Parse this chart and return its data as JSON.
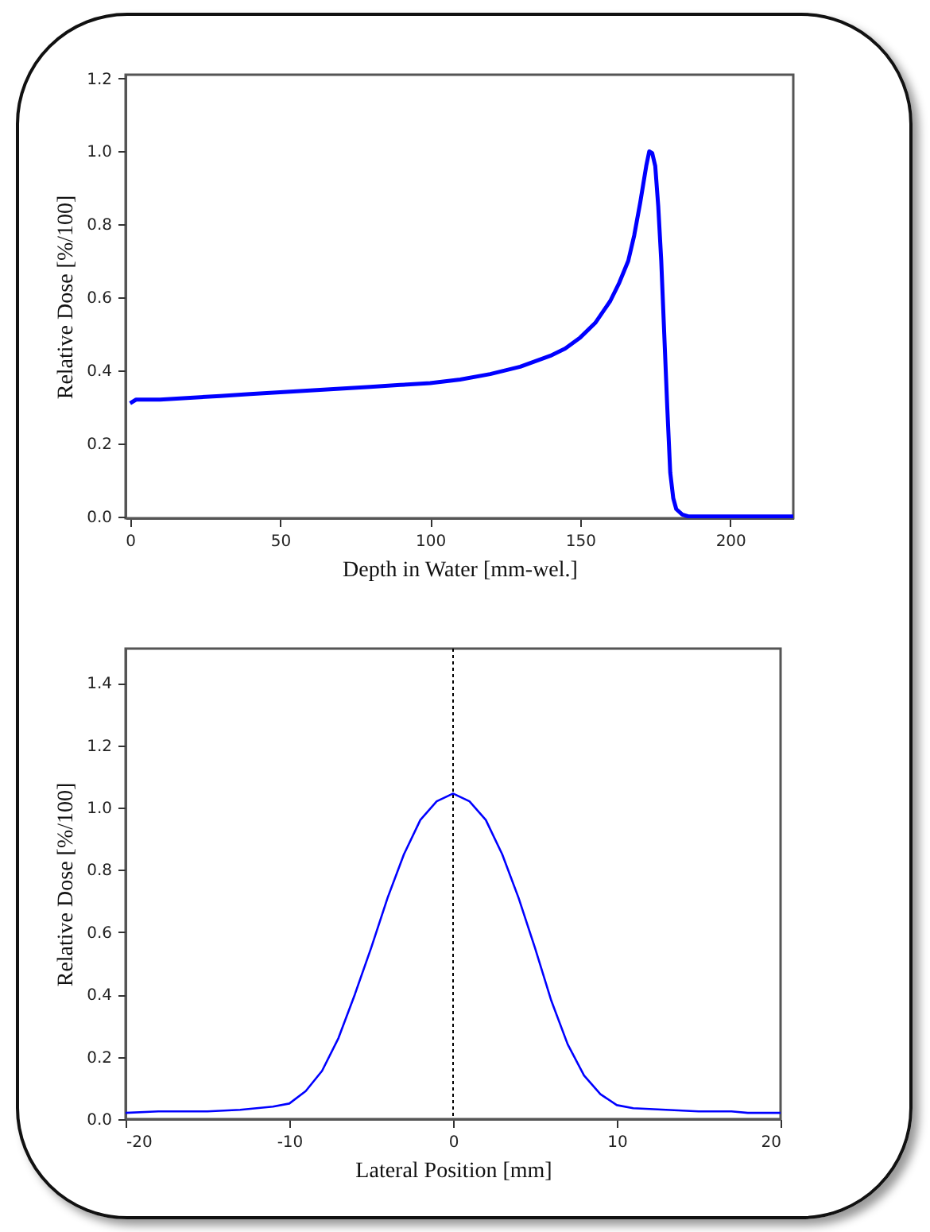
{
  "chart_data": [
    {
      "type": "line",
      "xlabel": "Depth in Water [mm-wel.]",
      "ylabel": "Relative Dose [%/100]",
      "xlim": [
        -1.5,
        221
      ],
      "ylim": [
        -0.005,
        1.21
      ],
      "xticks": [
        0,
        50,
        100,
        150,
        200
      ],
      "yticks": [
        {
          "value": 0,
          "label": "0.0"
        },
        {
          "value": 0.2,
          "label": "0.2"
        },
        {
          "value": 0.4,
          "label": "0.4"
        },
        {
          "value": 0.6,
          "label": "0.6"
        },
        {
          "value": 0.8,
          "label": "0.8"
        },
        {
          "value": 1,
          "label": "1.0"
        },
        {
          "value": 1.2,
          "label": "1.2"
        }
      ],
      "grid": false,
      "marker": "none",
      "line_style": "solid",
      "x": [
        0,
        2,
        10,
        20,
        30,
        40,
        50,
        60,
        70,
        80,
        90,
        100,
        110,
        120,
        130,
        140,
        145,
        150,
        155,
        160,
        163,
        166,
        168,
        170,
        172,
        173,
        174,
        175,
        176,
        177,
        178,
        179,
        180,
        181,
        182,
        184,
        186,
        200,
        221
      ],
      "series": [
        {
          "color": "#0000ff",
          "values": [
            0.31,
            0.32,
            0.32,
            0.325,
            0.33,
            0.335,
            0.34,
            0.345,
            0.35,
            0.355,
            0.36,
            0.365,
            0.375,
            0.39,
            0.41,
            0.44,
            0.46,
            0.49,
            0.53,
            0.59,
            0.64,
            0.7,
            0.77,
            0.86,
            0.96,
            1.0,
            0.995,
            0.96,
            0.85,
            0.7,
            0.5,
            0.3,
            0.12,
            0.05,
            0.02,
            0.005,
            0,
            0,
            0
          ]
        }
      ]
    },
    {
      "type": "line",
      "xlabel": "Lateral Position [mm]",
      "ylabel": "Relative Dose [%/100]",
      "xlim": [
        -20,
        20
      ],
      "ylim": [
        0,
        1.51
      ],
      "xticks": [
        -20,
        -10,
        0,
        10,
        20
      ],
      "yticks": [
        {
          "value": 0,
          "label": "0.0"
        },
        {
          "value": 0.2,
          "label": "0.2"
        },
        {
          "value": 0.4,
          "label": "0.4"
        },
        {
          "value": 0.6,
          "label": "0.6"
        },
        {
          "value": 0.8,
          "label": "0.8"
        },
        {
          "value": 1,
          "label": "1.0"
        },
        {
          "value": 1.2,
          "label": "1.2"
        },
        {
          "value": 1.4,
          "label": "1.4"
        }
      ],
      "grid": false,
      "marker": "none",
      "line_style": "solid",
      "ref_lines": [
        {
          "axis": "x",
          "value": 0,
          "color": "#000000",
          "line_style": "dotted"
        }
      ],
      "x": [
        -20,
        -18,
        -15,
        -13,
        -11,
        -10,
        -9,
        -8,
        -7,
        -6,
        -5,
        -4,
        -3,
        -2,
        -1,
        0,
        1,
        2,
        3,
        4,
        5,
        6,
        7,
        8,
        9,
        10,
        11,
        13,
        15,
        17,
        18,
        20
      ],
      "series": [
        {
          "color": "#0000ff",
          "values": [
            0.02,
            0.025,
            0.025,
            0.03,
            0.04,
            0.05,
            0.09,
            0.155,
            0.26,
            0.4,
            0.55,
            0.71,
            0.85,
            0.96,
            1.02,
            1.045,
            1.02,
            0.96,
            0.85,
            0.71,
            0.55,
            0.38,
            0.24,
            0.14,
            0.08,
            0.045,
            0.035,
            0.03,
            0.025,
            0.025,
            0.02,
            0.02
          ]
        }
      ]
    }
  ]
}
